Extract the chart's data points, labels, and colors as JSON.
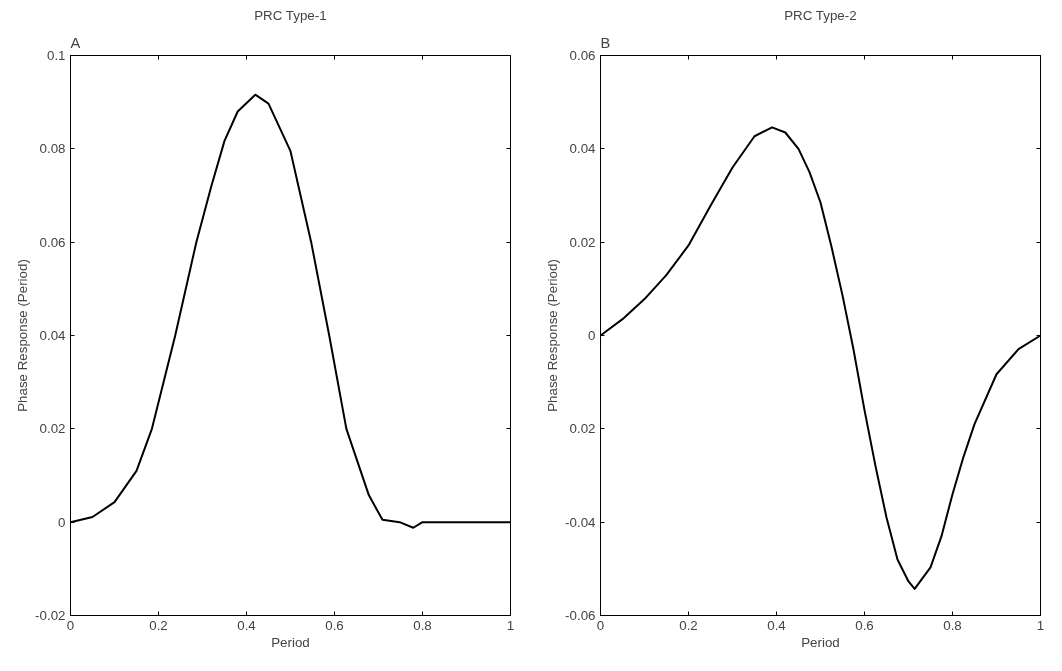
{
  "chart_data": [
    {
      "type": "line",
      "title": "PRC Type-1",
      "xlabel": "Period",
      "ylabel": "Phase Response (Period)",
      "annotations": [
        "A"
      ],
      "x": [
        0,
        0.05,
        0.1,
        0.15,
        0.185,
        0.238,
        0.286,
        0.32,
        0.35,
        0.38,
        0.42,
        0.45,
        0.5,
        0.547,
        0.588,
        0.627,
        0.678,
        0.709,
        0.748,
        0.779,
        0.8,
        1
      ],
      "series": [
        {
          "color": "#000000",
          "values": [
            0,
            0.0011,
            0.0043,
            0.011,
            0.02,
            0.04,
            0.06,
            0.072,
            0.0817,
            0.088,
            0.0916,
            0.0897,
            0.0795,
            0.06,
            0.04,
            0.02,
            0.0058,
            0.0005,
            0,
            -0.0012,
            0,
            0
          ]
        }
      ],
      "xlim": [
        0,
        1
      ],
      "ylim": [
        -0.02,
        0.1
      ],
      "xticks": [
        0,
        0.2,
        0.4,
        0.6,
        0.8,
        1
      ],
      "yticks": [
        -0.02,
        0,
        0.02,
        0.04,
        0.06,
        0.08,
        0.1
      ],
      "grid": false,
      "marker": "none",
      "line_style": "solid"
    },
    {
      "type": "line",
      "title": "PRC Type-2",
      "xlabel": "Period",
      "ylabel": "Phase Response (Period)",
      "annotations": [
        "B"
      ],
      "x": [
        0,
        0.05,
        0.1,
        0.15,
        0.2,
        0.25,
        0.3,
        0.35,
        0.39,
        0.42,
        0.45,
        0.475,
        0.5,
        0.525,
        0.55,
        0.575,
        0.6,
        0.625,
        0.65,
        0.675,
        0.7,
        0.714,
        0.75,
        0.775,
        0.8,
        0.825,
        0.85,
        0.9,
        0.95,
        1
      ],
      "series": [
        {
          "color": "#000000",
          "values": [
            0,
            0.0035,
            0.0078,
            0.013,
            0.0193,
            0.0278,
            0.036,
            0.0427,
            0.0446,
            0.0435,
            0.04,
            0.035,
            0.0285,
            0.019,
            0.0086,
            -0.003,
            -0.016,
            -0.028,
            -0.039,
            -0.048,
            -0.0527,
            -0.0543,
            -0.0497,
            -0.043,
            -0.034,
            -0.026,
            -0.019,
            -0.0083,
            -0.0029,
            0
          ]
        }
      ],
      "xlim": [
        0,
        1
      ],
      "ylim": [
        -0.06,
        0.06
      ],
      "xticks": [
        0,
        0.2,
        0.4,
        0.6,
        0.8,
        1
      ],
      "yticks": [
        -0.06,
        -0.04,
        {
          "value": -0.02,
          "label": "0.02"
        },
        0,
        0.02,
        0.04,
        0.06
      ],
      "grid": false,
      "marker": "none",
      "line_style": "solid"
    }
  ]
}
